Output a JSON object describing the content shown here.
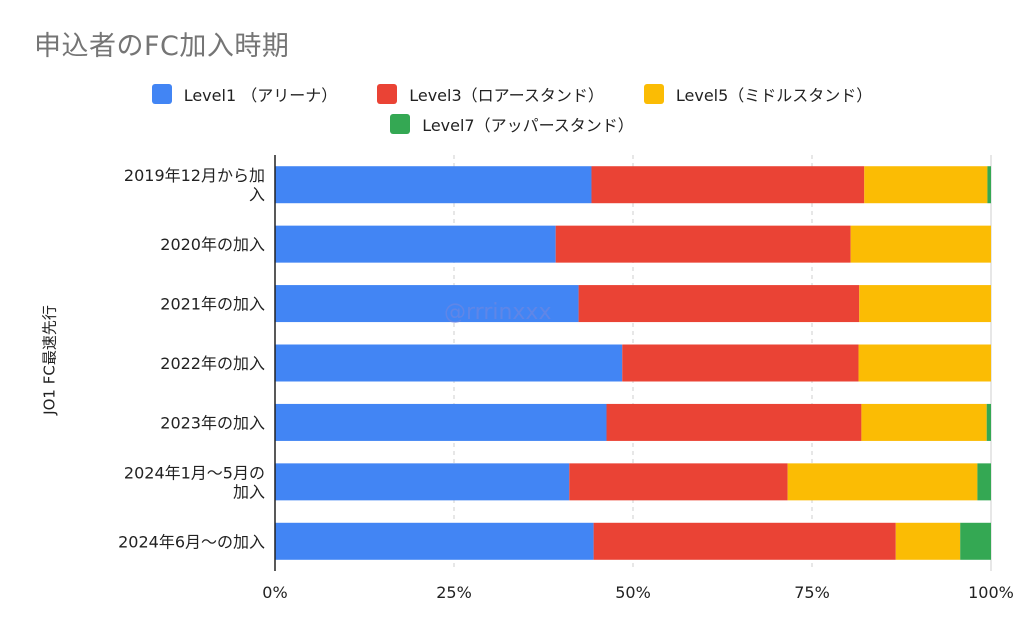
{
  "chart_data": {
    "type": "bar",
    "orientation": "horizontal",
    "stacked": "percent",
    "title": "申込者のFC加入時期",
    "ylabel": "JO1 FC最速先行",
    "xlabel": "",
    "xlim": [
      0,
      100
    ],
    "x_ticks": [
      "0%",
      "25%",
      "50%",
      "75%",
      "100%"
    ],
    "categories": [
      "2019年12月から加入",
      "2020年の加入",
      "2021年の加入",
      "2022年の加入",
      "2023年の加入",
      "2024年1月〜5月の加入",
      "2024年6月〜の加入"
    ],
    "category_lines": [
      [
        "2019年12月から加",
        "入"
      ],
      [
        "2020年の加入"
      ],
      [
        "2021年の加入"
      ],
      [
        "2022年の加入"
      ],
      [
        "2023年の加入"
      ],
      [
        "2024年1月〜5月の",
        "加入"
      ],
      [
        "2024年6月〜の加入"
      ]
    ],
    "series": [
      {
        "name": "Level1 （アリーナ）",
        "color": "#4285F4",
        "values": [
          44.2,
          39.2,
          42.4,
          48.5,
          46.3,
          41.1,
          44.5
        ]
      },
      {
        "name": "Level3（ロアースタンド）",
        "color": "#EA4335",
        "values": [
          38.1,
          41.2,
          39.2,
          33.0,
          35.6,
          30.5,
          42.2
        ]
      },
      {
        "name": "Level5（ミドルスタンド）",
        "color": "#FBBC04",
        "values": [
          17.2,
          19.6,
          18.4,
          18.5,
          17.5,
          26.5,
          9.0
        ]
      },
      {
        "name": "Level7（アッパースタンド）",
        "color": "#34A853",
        "values": [
          0.5,
          0.0,
          0.0,
          0.0,
          0.6,
          1.9,
          4.3
        ]
      }
    ],
    "grid": true,
    "legend_position": "top"
  },
  "watermark": "@rrrinxxx"
}
